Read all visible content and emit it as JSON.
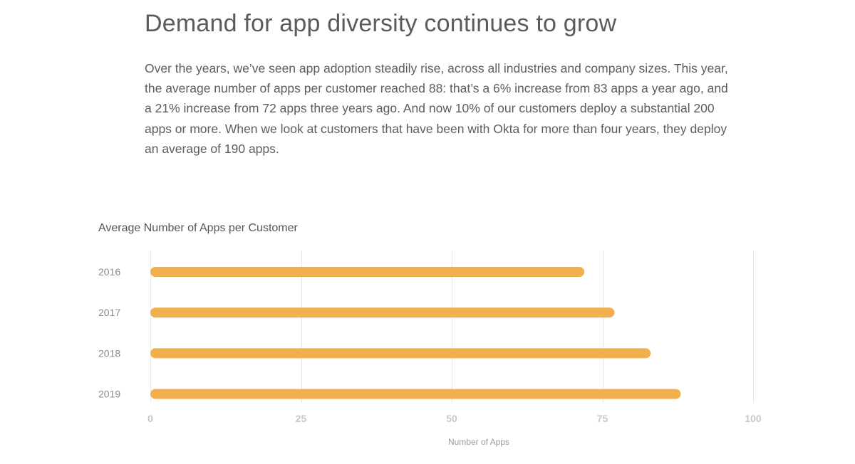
{
  "article": {
    "heading": "Demand for app diversity continues to grow",
    "intro": "Over the years, we’ve seen app adoption steadily rise, across all industries and company sizes. This year, the average number of apps per customer reached 88: that’s a 6% increase from 83 apps a year ago, and a 21% increase from 72 apps three years ago. And now 10% of our customers deploy a substantial 200 apps or more. When we look at customers that have been with Okta for more than four years, they deploy an average of 190 apps."
  },
  "chart_data": {
    "type": "bar",
    "orientation": "horizontal",
    "title": "Average Number of Apps per Customer",
    "xlabel": "Number of Apps",
    "ylabel": "",
    "categories": [
      "2016",
      "2017",
      "2018",
      "2019"
    ],
    "values": [
      72,
      77,
      83,
      88
    ],
    "xlim": [
      0,
      100
    ],
    "xticks": [
      0,
      25,
      50,
      75,
      100
    ],
    "grid": true,
    "legend": "none",
    "colors": {
      "bar": "#f2af4e",
      "grid": "#e7e7e7"
    }
  }
}
